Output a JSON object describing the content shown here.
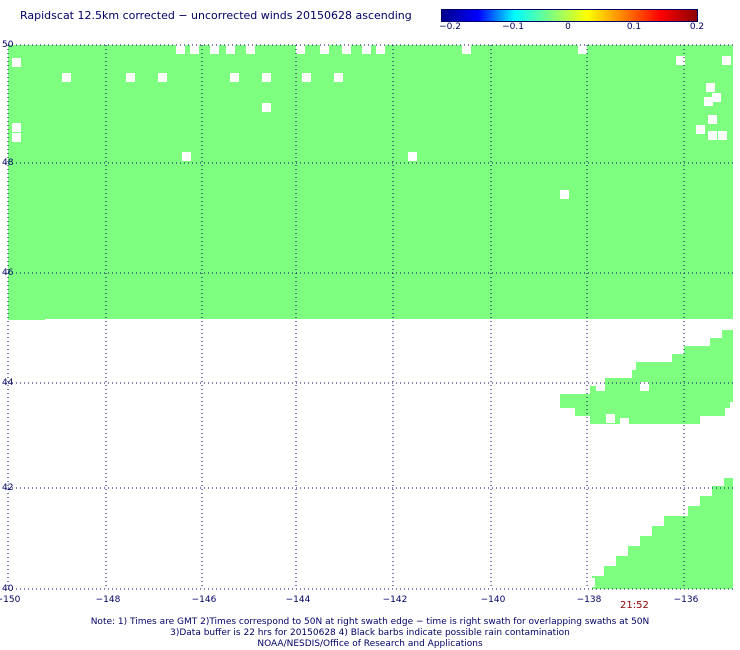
{
  "title": "Rapidscat 12.5km corrected − uncorrected winds 20150628 ascending",
  "colorbar": {
    "ticks": [
      "−0.2",
      "−0.1",
      "0",
      "0.1",
      "0.2"
    ],
    "gradient": [
      "#00008b",
      "#0000ff",
      "#00ffff",
      "#7fff7f",
      "#ffff00",
      "#ff7f00",
      "#ff0000",
      "#8b0000"
    ]
  },
  "map": {
    "lon_ticks": [
      "−150",
      "−148",
      "−146",
      "−144",
      "−142",
      "−140",
      "−138",
      "−136"
    ],
    "lat_ticks": [
      "50",
      "48",
      "46",
      "44",
      "42",
      "40"
    ],
    "lon_range": [
      -150,
      -135
    ],
    "lat_range": [
      40,
      50
    ],
    "fill_color": "#7fff7f",
    "grid_color": "#000066"
  },
  "time_label": "21:52",
  "notes": [
    "Note: 1) Times are GMT 2)Times correspond to 50N at right swath edge − time is right swath for overlapping swaths at 50N",
    "3)Data buffer is 22 hrs for 20150628 4) Black barbs indicate possible rain contamination",
    "NOAA/NESDIS/Office of Research and Applications"
  ]
}
